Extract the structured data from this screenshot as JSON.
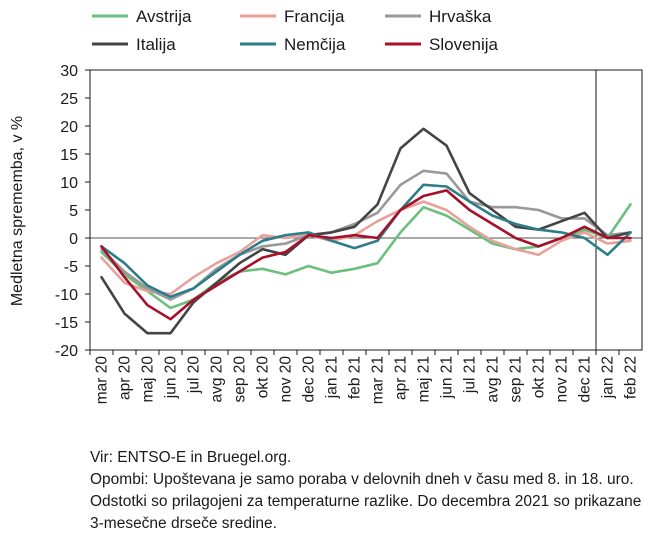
{
  "chart_data": {
    "type": "line",
    "title": "",
    "ylabel": "Medletna sprememba, v %",
    "xlabel": "",
    "ylim": [
      -20,
      30
    ],
    "yticks": [
      -20,
      -15,
      -10,
      -5,
      0,
      5,
      10,
      15,
      20,
      25,
      30
    ],
    "grid": false,
    "legend_position": "top",
    "categories": [
      "mar 20",
      "apr 20",
      "maj 20",
      "jun 20",
      "jul 20",
      "avg 20",
      "sep 20",
      "okt 20",
      "nov 20",
      "dec 20",
      "jan 21",
      "feb 21",
      "mar 21",
      "apr 21",
      "maj 21",
      "jun 21",
      "jul 21",
      "avg 21",
      "sep 21",
      "okt 21",
      "nov 21",
      "dec 21",
      "jan 22",
      "feb 22"
    ],
    "marker_after": "dec 21",
    "series": [
      {
        "name": "Avstrija",
        "color": "#6dbf7e",
        "values": [
          -2.5,
          -6.5,
          -9.5,
          -12.5,
          -11,
          -8,
          -6,
          -5.5,
          -6.5,
          -5,
          -6.2,
          -5.5,
          -4.5,
          1,
          5.5,
          4,
          1.5,
          -1,
          -2,
          -1.5,
          0,
          1.5,
          0,
          6
        ]
      },
      {
        "name": "Francija",
        "color": "#e8a09a",
        "values": [
          -3.5,
          -8,
          -9.5,
          -10,
          -7,
          -4.5,
          -2.5,
          0.5,
          0,
          0.5,
          -0.5,
          0.5,
          3,
          5,
          6.5,
          5,
          2,
          -0.5,
          -2,
          -3,
          -0.5,
          1,
          -1,
          -0.5
        ]
      },
      {
        "name": "Hrvaška",
        "color": "#999999",
        "values": [
          -2,
          -6,
          -9,
          -11,
          -9,
          -5.5,
          -3,
          -1.5,
          -1,
          0.5,
          1,
          2.5,
          4.5,
          9.5,
          12,
          11.5,
          6.5,
          5.5,
          5.5,
          5,
          3.5,
          3.5,
          0.5,
          1
        ]
      },
      {
        "name": "Italija",
        "color": "#444444",
        "values": [
          -7,
          -13.5,
          -17,
          -17,
          -11.5,
          -8,
          -4.5,
          -2,
          -3,
          0.5,
          1,
          2,
          6,
          16,
          19.5,
          16.5,
          8,
          5,
          2,
          1.5,
          3,
          4.5,
          0,
          1
        ]
      },
      {
        "name": "Nemčija",
        "color": "#2e7d8a",
        "values": [
          -1.5,
          -4.5,
          -8.5,
          -10.5,
          -9,
          -6,
          -3,
          -0.5,
          0.5,
          1,
          -0.5,
          -1.8,
          -0.5,
          5,
          9.5,
          9.2,
          6.5,
          4,
          2.5,
          1.5,
          1,
          0,
          -3,
          1
        ]
      },
      {
        "name": "Slovenija",
        "color": "#a8102a",
        "values": [
          -1.5,
          -7,
          -12,
          -14.5,
          -11,
          -8.5,
          -6,
          -3.5,
          -2.5,
          0.5,
          0,
          0.5,
          0,
          5,
          7.5,
          8.5,
          5,
          2.5,
          0,
          -1.5,
          0,
          2,
          0,
          0
        ]
      }
    ]
  },
  "notes": {
    "source": "Vir: ENTSO-E in Bruegel.org.",
    "remarks": "Opombi: Upoštevana je samo poraba v delovnih dneh v času med 8. in 18. uro. Odstotki so prilagojeni za temperaturne razlike. Do decembra 2021 so prikazane 3-mesečne drseče sredine."
  }
}
